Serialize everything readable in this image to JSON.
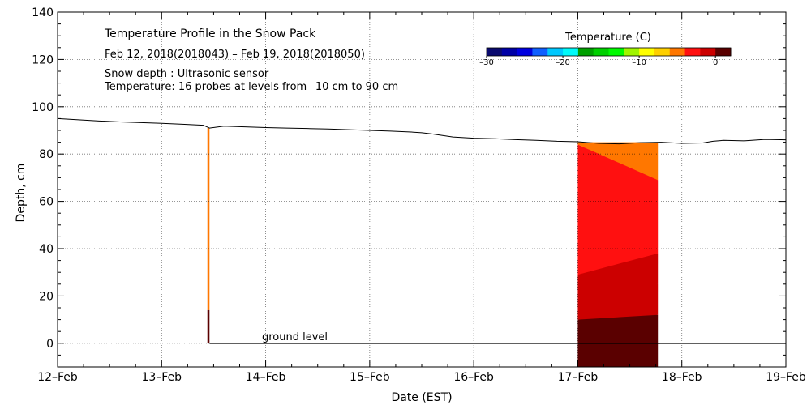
{
  "chart_data": {
    "type": "heatmap",
    "title": "Temperature Profile in the Snow Pack",
    "subtitle": "Feb 12, 2018(2018043) – Feb 19, 2018(2018050)",
    "annotations": [
      "Snow depth : Ultrasonic sensor",
      "Temperature: 16 probes at levels from –10 cm to 90 cm"
    ],
    "xlabel": "Date (EST)",
    "ylabel": "Depth, cm",
    "xlim": [
      0,
      7
    ],
    "ylim": [
      -10,
      140
    ],
    "x_tick_labels": [
      "12–Feb",
      "13–Feb",
      "14–Feb",
      "15–Feb",
      "16–Feb",
      "17–Feb",
      "18–Feb",
      "19–Feb"
    ],
    "y_tick_values": [
      0,
      20,
      40,
      60,
      80,
      100,
      120,
      140
    ],
    "grid": true,
    "ground_level": {
      "label": "ground level",
      "depth": 0,
      "x_start": 1.46,
      "x_end": 7.0
    },
    "colorbar": {
      "title": "Temperature (C)",
      "min": -30,
      "max": 2,
      "tick_values": [
        -30,
        -20,
        -10,
        0
      ],
      "tick_labels": [
        "–30",
        "–20",
        "–10",
        "0"
      ],
      "colors": [
        "#0a0a6e",
        "#0000a6",
        "#0000e0",
        "#0f5fff",
        "#00c8ff",
        "#00fafa",
        "#00a000",
        "#00d000",
        "#00fa00",
        "#a0f500",
        "#ffff00",
        "#ffd000",
        "#ff7700",
        "#ff1010",
        "#cc0000",
        "#5a0000"
      ]
    },
    "snow_depth_series": {
      "name": "Snow depth",
      "x": [
        0,
        0.2,
        0.4,
        0.6,
        0.8,
        1.0,
        1.2,
        1.4,
        1.46,
        1.6,
        1.8,
        2.0,
        2.2,
        2.4,
        2.6,
        2.8,
        3.0,
        3.2,
        3.4,
        3.5,
        3.6,
        3.8,
        4.0,
        4.2,
        4.4,
        4.6,
        4.8,
        5.0,
        5.2,
        5.4,
        5.6,
        5.8,
        6.0,
        6.2,
        6.3,
        6.4,
        6.6,
        6.8,
        7.0
      ],
      "y": [
        95,
        94.5,
        94,
        93.6,
        93.3,
        93,
        92.6,
        92.2,
        91,
        91.8,
        91.5,
        91.2,
        91,
        90.8,
        90.6,
        90.3,
        90,
        89.7,
        89.3,
        89,
        88.5,
        87.2,
        86.7,
        86.5,
        86.1,
        85.8,
        85.4,
        85.2,
        84.5,
        84.3,
        84.8,
        85,
        84.5,
        84.7,
        85.4,
        85.8,
        85.6,
        86.2,
        86
      ]
    },
    "temperature_blocks": [
      {
        "x_start": 1.44,
        "x_end": 1.46,
        "bands": [
          {
            "from": 14,
            "to": 91,
            "temp": -6
          },
          {
            "from": 0,
            "to": 14,
            "temp": 0
          }
        ]
      },
      {
        "x_start": 5.0,
        "x_end": 5.77,
        "top": [
          [
            5.0,
            85
          ],
          [
            5.2,
            85
          ],
          [
            5.4,
            84
          ],
          [
            5.6,
            84.2
          ],
          [
            5.77,
            84.8
          ]
        ],
        "bands": [
          {
            "temp": -6,
            "top": [
              [
                5.0,
                85
              ],
              [
                5.77,
                85
              ]
            ],
            "bottom": [
              [
                5.0,
                84
              ],
              [
                5.1,
                82
              ],
              [
                5.2,
                77
              ],
              [
                5.35,
                74
              ],
              [
                5.5,
                72
              ],
              [
                5.65,
                70
              ],
              [
                5.77,
                69
              ]
            ]
          },
          {
            "temp": -3,
            "top": [
              [
                5.0,
                84
              ],
              [
                5.77,
                69
              ]
            ],
            "bottom": [
              [
                5.0,
                29
              ],
              [
                5.15,
                30
              ],
              [
                5.3,
                31
              ],
              [
                5.45,
                32
              ],
              [
                5.6,
                34
              ],
              [
                5.77,
                38
              ]
            ]
          },
          {
            "temp": -1.5,
            "top": [
              [
                5.0,
                29
              ],
              [
                5.77,
                38
              ]
            ],
            "bottom": [
              [
                5.0,
                19
              ],
              [
                5.2,
                18.5
              ],
              [
                5.4,
                20
              ],
              [
                5.6,
                22
              ],
              [
                5.77,
                25
              ]
            ]
          },
          {
            "temp": -0.5,
            "top": [
              [
                5.0,
                19
              ],
              [
                5.77,
                25
              ]
            ],
            "bottom": [
              [
                5.0,
                10
              ],
              [
                5.2,
                9.5
              ],
              [
                5.4,
                10
              ],
              [
                5.6,
                11
              ],
              [
                5.77,
                12
              ]
            ]
          },
          {
            "temp": 0.5,
            "top": [
              [
                5.0,
                10
              ],
              [
                5.77,
                12
              ]
            ],
            "bottom": [
              [
                5.0,
                -10
              ],
              [
                5.77,
                -10
              ]
            ]
          }
        ]
      }
    ]
  }
}
